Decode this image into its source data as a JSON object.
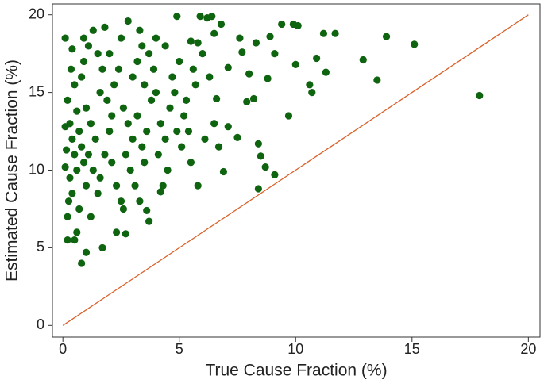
{
  "chart_data": {
    "type": "scatter",
    "x_label": "True Cause Fraction (%)",
    "y_label": "Estimated Cause Fraction (%)",
    "xlim": [
      -0.45,
      20.5
    ],
    "ylim": [
      -0.75,
      20.7
    ],
    "xticks": [
      0,
      5,
      10,
      15,
      20
    ],
    "yticks": [
      0,
      5,
      10,
      15,
      20
    ],
    "color": "#0f6410",
    "x": [
      17.9,
      15.1,
      13.9,
      13.5,
      12.9,
      11.7,
      11.2,
      11.3,
      10.9,
      10.7,
      10.6,
      10.1,
      9.9,
      10,
      9.7,
      9.1,
      8.4,
      8.7,
      8.5,
      8.4,
      8.8,
      9.1,
      9.4,
      5.9,
      6.2,
      6.4,
      5.5,
      7.7,
      8.3,
      8.9,
      6.8,
      7.6,
      5.8,
      4.9,
      2.8,
      0.1,
      0.8,
      1.0,
      1.7,
      0.5,
      0.2,
      0.6,
      2.3,
      2.7,
      3.7,
      1.2,
      3.6,
      4.2,
      6.9,
      7.1,
      7.5,
      7.9,
      8.2,
      8.0,
      7.1,
      6.6,
      0.2,
      0.3,
      0.4,
      0.5,
      0.6,
      0.3,
      0.4,
      0.7,
      0.2,
      0.5,
      0.8,
      0.9,
      1.1,
      1.3,
      0.9,
      1.0,
      1.2,
      1.4,
      1.1,
      1.3,
      1.0,
      1.5,
      1.6,
      1.8,
      2.0,
      2.1,
      1.9,
      2.2,
      2.4,
      2.0,
      2.5,
      2.6,
      2.8,
      3.0,
      2.7,
      2.9,
      3.1,
      3.3,
      2.6,
      3.5,
      3.4,
      3.6,
      3.2,
      3.8,
      3.5,
      3.9,
      3.7,
      4.0,
      4.2,
      4.4,
      4.1,
      4.5,
      4.3,
      4.6,
      4.8,
      4.7,
      5.0,
      5.2,
      5.4,
      5.1,
      5.5,
      5.3,
      5.7,
      5.6,
      6.0,
      6.3,
      6.1,
      6.5,
      6.7,
      0.1,
      0.15,
      0.1,
      0.25,
      0.35,
      0.6,
      0.7,
      0.8,
      0.9,
      1.6,
      1.7,
      1.5,
      2.3,
      2.5,
      2.1,
      3.0,
      3.2,
      3.4,
      4.0,
      4.9,
      0.4,
      1.8,
      3.3,
      4.4,
      5.8,
      6.5
    ],
    "y": [
      14.8,
      18.1,
      18.6,
      15.8,
      17.1,
      18.8,
      18.8,
      16.3,
      17.2,
      15,
      15.5,
      19.3,
      19.4,
      16.8,
      13.5,
      9.7,
      8.8,
      10.2,
      10.9,
      11.7,
      15.9,
      17.5,
      19.4,
      19.9,
      19.8,
      19.9,
      18.3,
      17.6,
      18.2,
      18.6,
      19.4,
      18.5,
      9,
      19.9,
      19.6,
      18.5,
      4,
      4.7,
      5,
      5.5,
      5.5,
      6,
      6,
      5.9,
      6.7,
      7,
      7.4,
      8.6,
      9.9,
      12.8,
      12.1,
      14.4,
      14.6,
      16.2,
      16.6,
      14.6,
      14.5,
      13,
      12,
      11,
      10,
      9.5,
      8.5,
      7.5,
      7,
      15.5,
      16,
      17,
      18,
      19,
      18.5,
      14,
      13,
      12,
      11,
      10,
      9,
      8.5,
      9.5,
      11,
      12.5,
      13.5,
      14.5,
      15.5,
      16.5,
      17.5,
      18.5,
      14,
      13,
      12,
      11,
      10,
      9,
      8,
      7.5,
      10.5,
      11.5,
      12.5,
      13.5,
      14.5,
      15.5,
      16.5,
      17.5,
      18.5,
      13,
      12,
      11,
      10,
      9,
      14,
      15,
      16,
      17,
      13.5,
      12.5,
      11.5,
      10.5,
      14.5,
      15.5,
      16.5,
      17.5,
      16,
      12,
      13,
      11.5,
      12.8,
      11.3,
      10.2,
      8,
      16.5,
      13.8,
      12.5,
      11.5,
      10.5,
      15,
      16.5,
      17.5,
      9,
      8,
      10.5,
      16,
      17,
      18,
      15,
      12.5,
      17.8,
      19.2,
      19,
      18,
      18.2,
      18.8
    ],
    "reference_line": {
      "x": [
        0,
        20
      ],
      "y": [
        0,
        20
      ],
      "color": "#d9622b"
    }
  }
}
